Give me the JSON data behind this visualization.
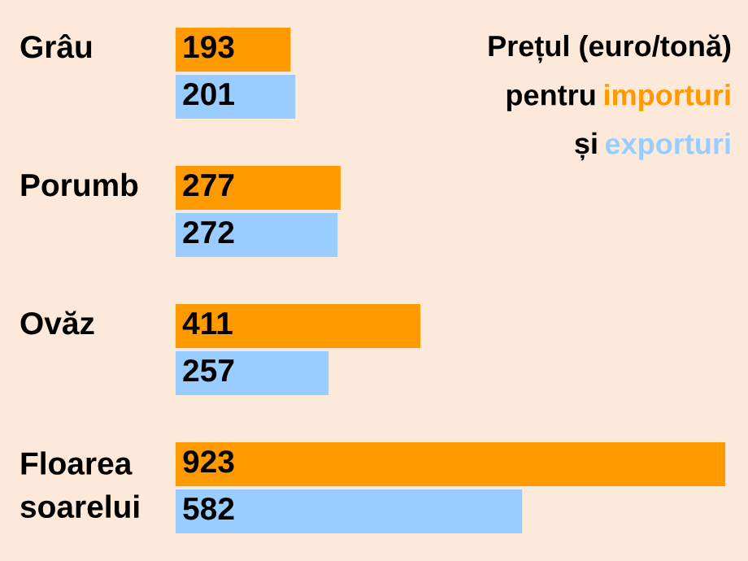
{
  "chart_data": {
    "type": "bar",
    "orientation": "horizontal",
    "title": "Prețul (euro/tonă)",
    "annotations": [
      "pentru",
      "și"
    ],
    "categories": [
      "Grâu",
      "Porumb",
      "Ovăz",
      "Floarea\nsoarelui"
    ],
    "series": [
      {
        "name": "importuri",
        "color": "#ff9900",
        "values": [
          193,
          277,
          411,
          923
        ]
      },
      {
        "name": "exporturi",
        "color": "#99ccff",
        "values": [
          201,
          272,
          257,
          582
        ]
      }
    ],
    "data_labels": true,
    "legend": "top right"
  }
}
